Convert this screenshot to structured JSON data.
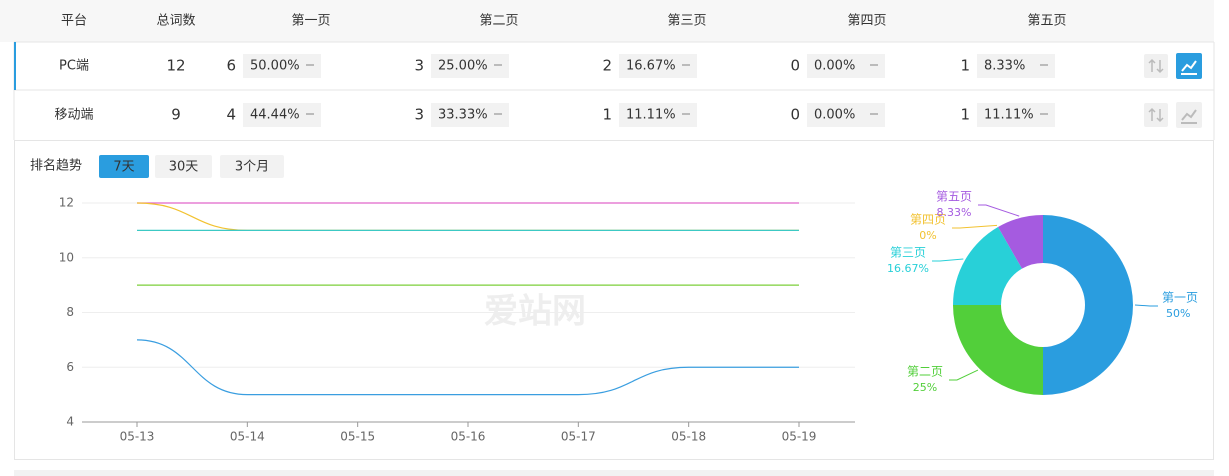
{
  "table": {
    "headers": [
      "平台",
      "总词数",
      "第一页",
      "第二页",
      "第三页",
      "第四页",
      "第五页"
    ],
    "rows": [
      {
        "platform": "PC端",
        "total": 12,
        "pages": [
          {
            "count": 6,
            "percent": "50.00%"
          },
          {
            "count": 3,
            "percent": "25.00%"
          },
          {
            "count": 2,
            "percent": "16.67%"
          },
          {
            "count": 0,
            "percent": "0.00%"
          },
          {
            "count": 1,
            "percent": "8.33%"
          }
        ]
      },
      {
        "platform": "移动端",
        "total": 9,
        "pages": [
          {
            "count": 4,
            "percent": "44.44%"
          },
          {
            "count": 3,
            "percent": "33.33%"
          },
          {
            "count": 1,
            "percent": "11.11%"
          },
          {
            "count": 0,
            "percent": "0.00%"
          },
          {
            "count": 1,
            "percent": "11.11%"
          }
        ]
      }
    ]
  },
  "trend": {
    "label": "排名趋势",
    "ranges": [
      "7天",
      "30天",
      "3个月"
    ]
  },
  "watermark": "爱站网",
  "chart_data": [
    {
      "type": "line",
      "categories": [
        "05-13",
        "05-14",
        "05-15",
        "05-16",
        "05-17",
        "05-18",
        "05-19"
      ],
      "ylim": [
        4,
        12
      ],
      "yticks": [
        4,
        6,
        8,
        10,
        12
      ],
      "grid": true,
      "series": [
        {
          "color": "#e066c9",
          "values": [
            12,
            12,
            12,
            12,
            12,
            12,
            12
          ]
        },
        {
          "color": "#f2c230",
          "values": [
            12,
            11,
            11,
            11,
            11,
            11,
            11
          ]
        },
        {
          "color": "#3cc9c4",
          "values": [
            11,
            11,
            11,
            11,
            11,
            11,
            11
          ]
        },
        {
          "color": "#7ccf3a",
          "values": [
            9,
            9,
            9,
            9,
            9,
            9,
            9
          ]
        },
        {
          "color": "#3a9ee0",
          "values": [
            7,
            5,
            5,
            5,
            5,
            6,
            6
          ]
        }
      ]
    },
    {
      "type": "donut",
      "categories": [
        "第一页",
        "第二页",
        "第三页",
        "第四页",
        "第五页"
      ],
      "values": [
        50,
        25,
        16.67,
        0,
        8.33
      ],
      "value_labels": [
        "50%",
        "25%",
        "16.67%",
        "0%",
        "8.33%"
      ],
      "colors": [
        "#2a9ddf",
        "#52cf3a",
        "#28d0d8",
        "#f2c230",
        "#a55be0"
      ]
    }
  ]
}
